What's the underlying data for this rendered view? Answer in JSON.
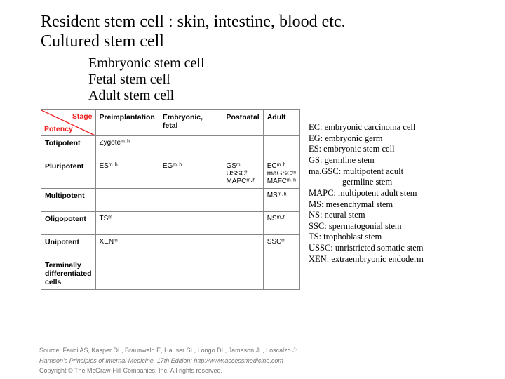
{
  "title": {
    "line1": "Resident stem cell : skin, intestine, blood etc.",
    "line2": "Cultured stem cell"
  },
  "subtitle": {
    "line1": "Embryonic stem cell",
    "line2": "Fetal stem cell",
    "line3": "Adult stem cell"
  },
  "table": {
    "diag_top": "Stage",
    "diag_bottom": "Potency",
    "headers": [
      "Preimplantation",
      "Embryonic, fetal",
      "Postnatal",
      "Adult"
    ],
    "rows": [
      {
        "label": "Totipotent",
        "cells": [
          "Zygoteᵐ·ʰ",
          "",
          "",
          ""
        ]
      },
      {
        "label": "Pluripotent",
        "cells": [
          "ESᵐ·ʰ",
          "EGᵐ·ʰ",
          "GSᵐ\nUSSCʰ\nMAPCᵐ·ʰ",
          "ECᵐ·ʰ\nmaGSCᵐ\nMAFCᵐ·ʰ"
        ]
      },
      {
        "label": "Multipotent",
        "cells": [
          "",
          "",
          "",
          "MSᵐ·ʰ"
        ]
      },
      {
        "label": "Oligopotent",
        "cells": [
          "TSᵐ",
          "",
          "",
          "NSᵐ·ʰ"
        ]
      },
      {
        "label": "Unipotent",
        "cells": [
          "XENᵐ",
          "",
          "",
          "SSCᵐ"
        ]
      },
      {
        "label": "Terminally differentiated cells",
        "cells": [
          "",
          "",
          "",
          ""
        ]
      }
    ],
    "colors": {
      "diag_text": "#e22222",
      "border": "#878787",
      "diag_line": "#e22222"
    }
  },
  "legend": [
    "EC: embryonic carcinoma cell",
    "EG: embryonic germ",
    "ES: embryonic stem cell",
    "GS: germline stem",
    "ma.GSC: multipotent adult",
    "            germline stem",
    "MAPC: multipotent adult stem",
    "MS: mesenchymal stem",
    "NS: neural stem",
    "SSC: spermatogonial stem",
    "TS: trophoblast stem",
    "USSC: unristricted somatic stem",
    "XEN: extraembryonic endoderm"
  ],
  "footer": {
    "source1": "Source: Fauci AS, Kasper DL, Braunwald E, Hauser SL, Longo DL, Jameson JL, Loscalzo J:",
    "source2": "Harrison's Principles of Internal Medicine, 17th Edition: http://www.accessmedicine.com",
    "copyright": "Copyright © The McGraw-Hill Companies, Inc. All rights reserved."
  }
}
